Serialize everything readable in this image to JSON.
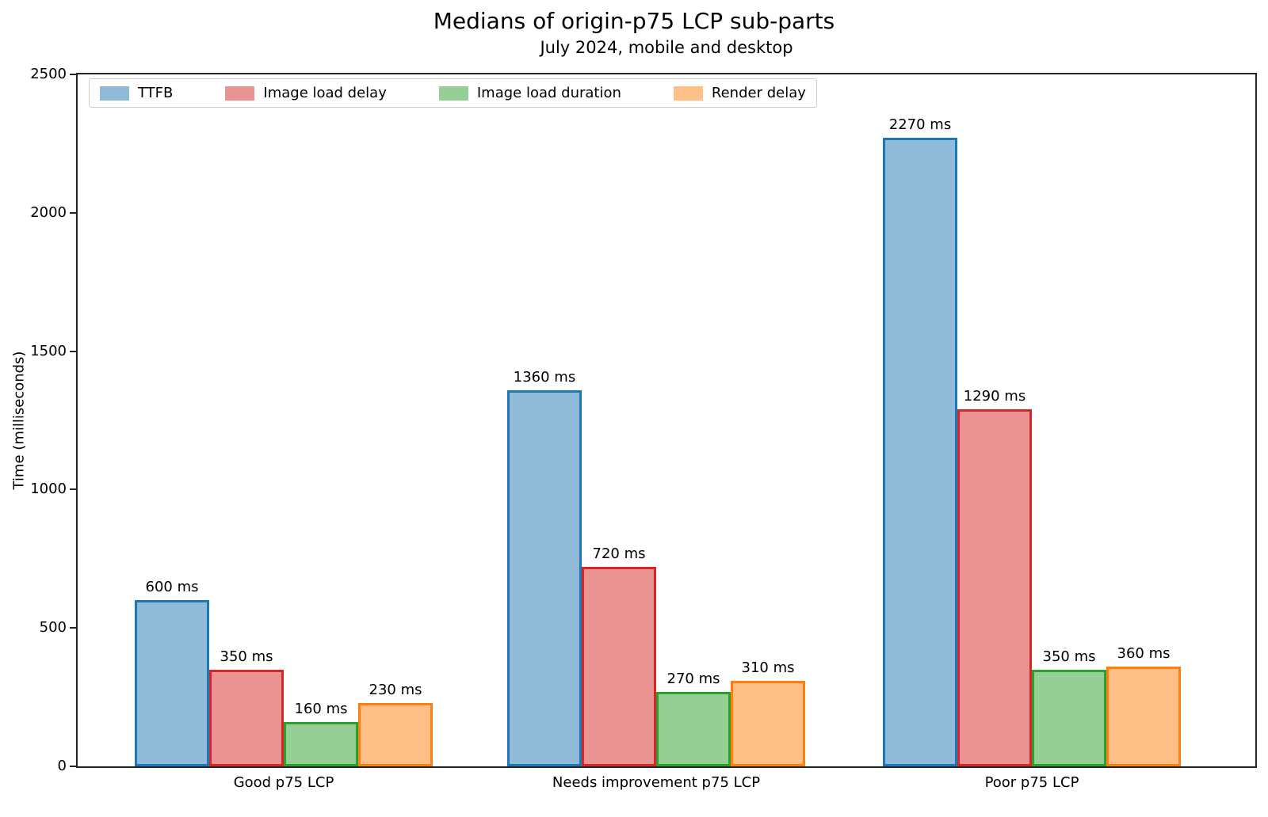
{
  "figure": {
    "title": "Medians of origin-p75 LCP sub-parts",
    "subtitle": "July 2024, mobile and desktop"
  },
  "chart_data": {
    "type": "bar",
    "title": "Medians of origin-p75 LCP sub-parts",
    "subtitle": "July 2024, mobile and desktop",
    "categories": [
      "Good p75 LCP",
      "Needs improvement p75 LCP",
      "Poor p75 LCP"
    ],
    "series": [
      {
        "name": "TTFB",
        "color": "#1f77b4",
        "values": [
          600,
          1360,
          2270
        ]
      },
      {
        "name": "Image load delay",
        "color": "#d62728",
        "values": [
          350,
          720,
          1290
        ]
      },
      {
        "name": "Image load duration",
        "color": "#2ca02c",
        "values": [
          160,
          270,
          350
        ]
      },
      {
        "name": "Render delay",
        "color": "#ff7f0e",
        "values": [
          230,
          310,
          360
        ]
      }
    ],
    "value_label_suffix": " ms",
    "xlabel": "",
    "ylabel": "Time (milliseconds)",
    "ylim": [
      0,
      2500
    ],
    "yticks": [
      0,
      500,
      1000,
      1500,
      2000,
      2500
    ],
    "legend": {
      "position": "upper left",
      "entries": [
        "TTFB",
        "Image load delay",
        "Image load duration",
        "Render delay"
      ]
    },
    "grid": false
  }
}
